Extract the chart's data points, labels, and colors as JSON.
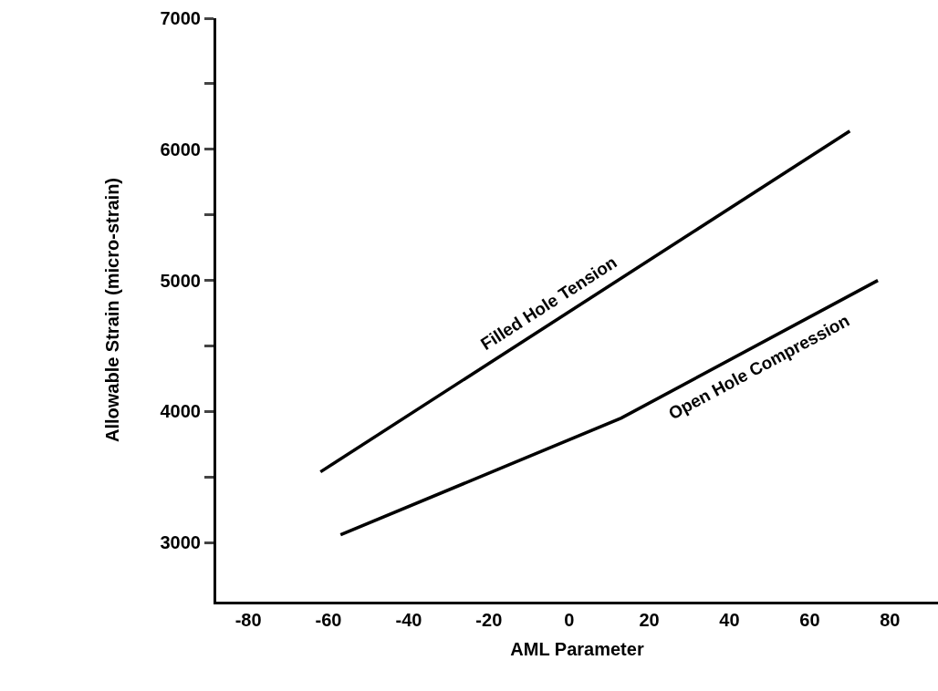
{
  "chart_data": {
    "type": "line",
    "xlabel": "AML Parameter",
    "ylabel": "Allowable Strain (micro-strain)",
    "series": [
      {
        "name": "Filled Hole Tension",
        "color": "#000000",
        "x": [
          -62,
          70
        ],
        "values": [
          3540,
          6140
        ]
      },
      {
        "name": "Open Hole Compression",
        "color": "#000000",
        "x": [
          -57,
          13,
          77
        ],
        "values": [
          3060,
          3950,
          5000
        ]
      }
    ],
    "xlim": [
      -88,
      92
    ],
    "xticks": [
      -80,
      -60,
      -40,
      -20,
      0,
      20,
      40,
      60,
      80
    ],
    "ylim": [
      2550,
      7000
    ],
    "yticks": [
      3000,
      {
        "value": 3500,
        "label": null
      },
      4000,
      {
        "value": 4500,
        "label": null
      },
      5000,
      {
        "value": 5500,
        "label": null
      },
      6000,
      {
        "value": 6500,
        "label": null
      },
      7000
    ],
    "legend": false,
    "marker": "none",
    "line_style": "solid"
  }
}
